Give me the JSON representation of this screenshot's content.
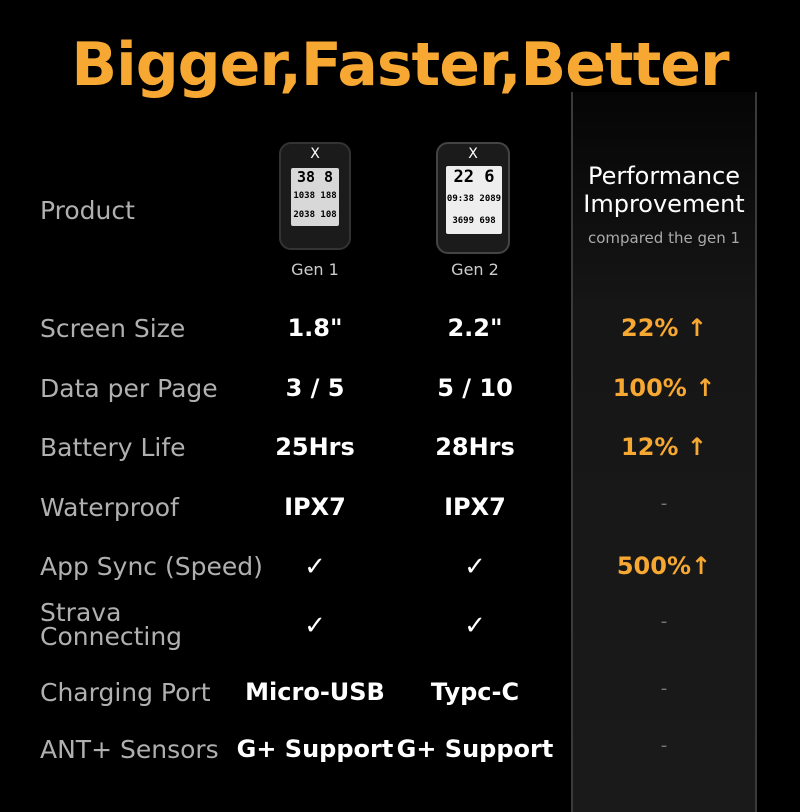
{
  "title": "Bigger,Faster,Better",
  "header": {
    "product_label": "Product",
    "gen1": "Gen 1",
    "gen2": "Gen 2",
    "improvement_title_1": "Performance",
    "improvement_title_2": "Improvement",
    "improvement_sub": "compared the gen 1"
  },
  "devices": {
    "logo": "X",
    "gen1_screen": [
      "38 8",
      "1038 188",
      "2038 108"
    ],
    "gen2_screen": [
      "22 6",
      "09:38 2089",
      "3699 698"
    ]
  },
  "rows": [
    {
      "label": "Screen Size",
      "gen1": "1.8\"",
      "gen2": "2.2\"",
      "improvement": "22% ↑"
    },
    {
      "label": "Data per Page",
      "gen1": "3 / 5",
      "gen2": "5 / 10",
      "improvement": "100% ↑"
    },
    {
      "label": "Battery Life",
      "gen1": "25Hrs",
      "gen2": "28Hrs",
      "improvement": "12% ↑"
    },
    {
      "label": "Waterproof",
      "gen1": "IPX7",
      "gen2": "IPX7",
      "improvement": "-"
    },
    {
      "label": "App Sync (Speed)",
      "gen1": "✓",
      "gen2": "✓",
      "improvement": "500%↑"
    },
    {
      "label": "Strava Connecting",
      "gen1": "✓",
      "gen2": "✓",
      "improvement": "-"
    },
    {
      "label": "Charging Port",
      "gen1": "Micro-USB",
      "gen2": "Typc-C",
      "improvement": "-"
    },
    {
      "label": "ANT+ Sensors",
      "gen1": "G+ Support",
      "gen2": "G+ Support",
      "improvement": "-"
    }
  ],
  "colors": {
    "accent": "#f7a832",
    "background": "#000000"
  }
}
